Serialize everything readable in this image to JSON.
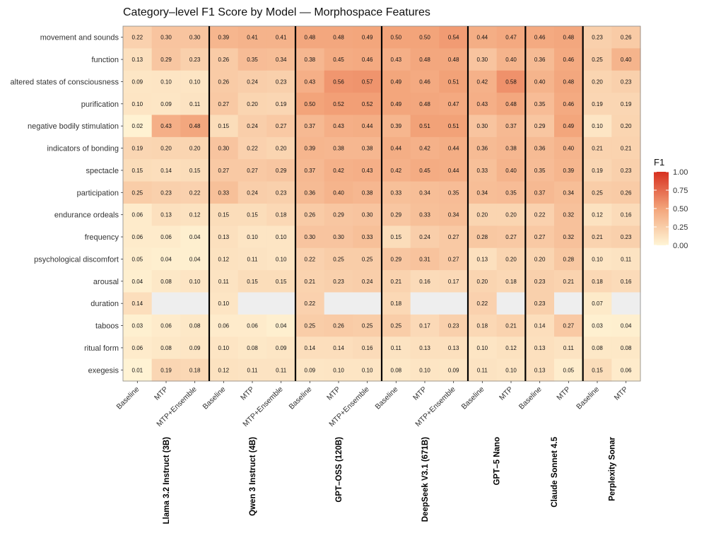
{
  "chart_data": {
    "type": "heatmap",
    "title": "Category–level F1 Score by Model — Morphospace Features",
    "rows": [
      "movement and sounds",
      "function",
      "altered states of consciousness",
      "purification",
      "negative bodily stimulation",
      "indicators of bonding",
      "spectacle",
      "participation",
      "endurance ordeals",
      "frequency",
      "psychological discomfort",
      "arousal",
      "duration",
      "taboos",
      "ritual form",
      "exegesis"
    ],
    "groups": [
      {
        "name": "Llama 3.2 Instruct (3B)",
        "columns": [
          "Baseline",
          "MTP",
          "MTP+Ensemble"
        ]
      },
      {
        "name": "Qwen 3 Instruct (4B)",
        "columns": [
          "Baseline",
          "MTP",
          "MTP+Ensemble"
        ]
      },
      {
        "name": "GPT–OSS (120B)",
        "columns": [
          "Baseline",
          "MTP",
          "MTP+Ensemble"
        ]
      },
      {
        "name": "DeepSeek V3.1 (671B)",
        "columns": [
          "Baseline",
          "MTP",
          "MTP+Ensemble"
        ]
      },
      {
        "name": "GPT–5 Nano",
        "columns": [
          "Baseline",
          "MTP"
        ]
      },
      {
        "name": "Claude Sonnet 4.5",
        "columns": [
          "Baseline",
          "MTP"
        ]
      },
      {
        "name": "Perplexity Sonar",
        "columns": [
          "Baseline",
          "MTP"
        ]
      }
    ],
    "values": [
      [
        0.22,
        0.3,
        0.3,
        0.39,
        0.41,
        0.41,
        0.48,
        0.48,
        0.49,
        0.5,
        0.5,
        0.54,
        0.44,
        0.47,
        0.46,
        0.48,
        0.23,
        0.26
      ],
      [
        0.13,
        0.29,
        0.23,
        0.26,
        0.35,
        0.34,
        0.38,
        0.45,
        0.46,
        0.43,
        0.48,
        0.48,
        0.3,
        0.4,
        0.36,
        0.46,
        0.25,
        0.4
      ],
      [
        0.09,
        0.1,
        0.1,
        0.26,
        0.24,
        0.23,
        0.43,
        0.56,
        0.57,
        0.49,
        0.46,
        0.51,
        0.42,
        0.58,
        0.4,
        0.48,
        0.2,
        0.23
      ],
      [
        0.1,
        0.09,
        0.11,
        0.27,
        0.2,
        0.19,
        0.5,
        0.52,
        0.52,
        0.49,
        0.48,
        0.47,
        0.43,
        0.48,
        0.35,
        0.46,
        0.19,
        0.19
      ],
      [
        0.02,
        0.43,
        0.48,
        0.15,
        0.24,
        0.27,
        0.37,
        0.43,
        0.44,
        0.39,
        0.51,
        0.51,
        0.3,
        0.37,
        0.29,
        0.49,
        0.1,
        0.2
      ],
      [
        0.19,
        0.2,
        0.2,
        0.3,
        0.22,
        0.2,
        0.39,
        0.38,
        0.38,
        0.44,
        0.42,
        0.44,
        0.36,
        0.38,
        0.36,
        0.4,
        0.21,
        0.21
      ],
      [
        0.15,
        0.14,
        0.15,
        0.27,
        0.27,
        0.29,
        0.37,
        0.42,
        0.43,
        0.42,
        0.45,
        0.44,
        0.33,
        0.4,
        0.35,
        0.39,
        0.19,
        0.23
      ],
      [
        0.25,
        0.23,
        0.22,
        0.33,
        0.24,
        0.23,
        0.36,
        0.4,
        0.38,
        0.33,
        0.34,
        0.35,
        0.34,
        0.35,
        0.37,
        0.34,
        0.25,
        0.26
      ],
      [
        0.06,
        0.13,
        0.12,
        0.15,
        0.15,
        0.18,
        0.26,
        0.29,
        0.3,
        0.29,
        0.33,
        0.34,
        0.2,
        0.2,
        0.22,
        0.32,
        0.12,
        0.16
      ],
      [
        0.06,
        0.06,
        0.04,
        0.13,
        0.1,
        0.1,
        0.3,
        0.3,
        0.33,
        0.15,
        0.24,
        0.27,
        0.28,
        0.27,
        0.27,
        0.32,
        0.21,
        0.23
      ],
      [
        0.05,
        0.04,
        0.04,
        0.12,
        0.11,
        0.1,
        0.22,
        0.25,
        0.25,
        0.29,
        0.31,
        0.27,
        0.13,
        0.2,
        0.2,
        0.28,
        0.1,
        0.11
      ],
      [
        0.04,
        0.08,
        0.1,
        0.11,
        0.15,
        0.15,
        0.21,
        0.23,
        0.24,
        0.21,
        0.16,
        0.17,
        0.2,
        0.18,
        0.23,
        0.21,
        0.18,
        0.16
      ],
      [
        0.14,
        null,
        null,
        0.1,
        null,
        null,
        0.22,
        null,
        null,
        0.18,
        null,
        null,
        0.22,
        null,
        0.23,
        null,
        0.07,
        null
      ],
      [
        0.03,
        0.06,
        0.08,
        0.06,
        0.06,
        0.04,
        0.25,
        0.26,
        0.25,
        0.25,
        0.17,
        0.23,
        0.18,
        0.21,
        0.14,
        0.27,
        0.03,
        0.04
      ],
      [
        0.06,
        0.08,
        0.09,
        0.1,
        0.08,
        0.09,
        0.14,
        0.14,
        0.16,
        0.11,
        0.13,
        0.13,
        0.1,
        0.12,
        0.13,
        0.11,
        0.08,
        0.08
      ],
      [
        0.01,
        0.19,
        0.18,
        0.12,
        0.11,
        0.11,
        0.09,
        0.1,
        0.1,
        0.08,
        0.1,
        0.09,
        0.11,
        0.1,
        0.13,
        0.05,
        0.15,
        0.06
      ]
    ],
    "legend": {
      "title": "F1",
      "range": [
        0,
        1
      ],
      "ticks": [
        "0.00",
        "0.25",
        "0.50",
        "0.75",
        "1.00"
      ],
      "tick_values": [
        0,
        0.25,
        0.5,
        0.75,
        1.0
      ],
      "placement": "right"
    },
    "colors": {
      "low": "#fff5d6",
      "mid": "#f3a47a",
      "high": "#d7301f",
      "missing": "#eeeeee",
      "separator": "#000000"
    }
  }
}
